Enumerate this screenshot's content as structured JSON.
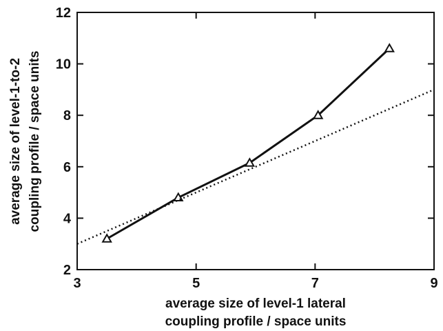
{
  "chart_data": {
    "type": "line",
    "title": "",
    "xlabel": [
      "average size of level-1 lateral",
      "coupling profile / space units"
    ],
    "ylabel": [
      "average size of level-1-to-2",
      "coupling profile / space units"
    ],
    "xlim": [
      3,
      9
    ],
    "ylim": [
      2,
      12
    ],
    "x_ticks": [
      "3",
      "5",
      "7",
      "9"
    ],
    "y_ticks": [
      "2",
      "4",
      "6",
      "8",
      "10",
      "12"
    ],
    "grid": false,
    "legend": "none",
    "series": [
      {
        "style": "solid",
        "marker": "triangle",
        "color": "#111111",
        "x": [
          3.5,
          4.7,
          5.9,
          7.05,
          8.25
        ],
        "y": [
          3.2,
          4.8,
          6.15,
          8.0,
          10.6
        ]
      },
      {
        "style": "dotted",
        "marker": "none",
        "color": "#111111",
        "x": [
          3.0,
          9.0
        ],
        "y": [
          3.0,
          9.0
        ]
      }
    ]
  }
}
